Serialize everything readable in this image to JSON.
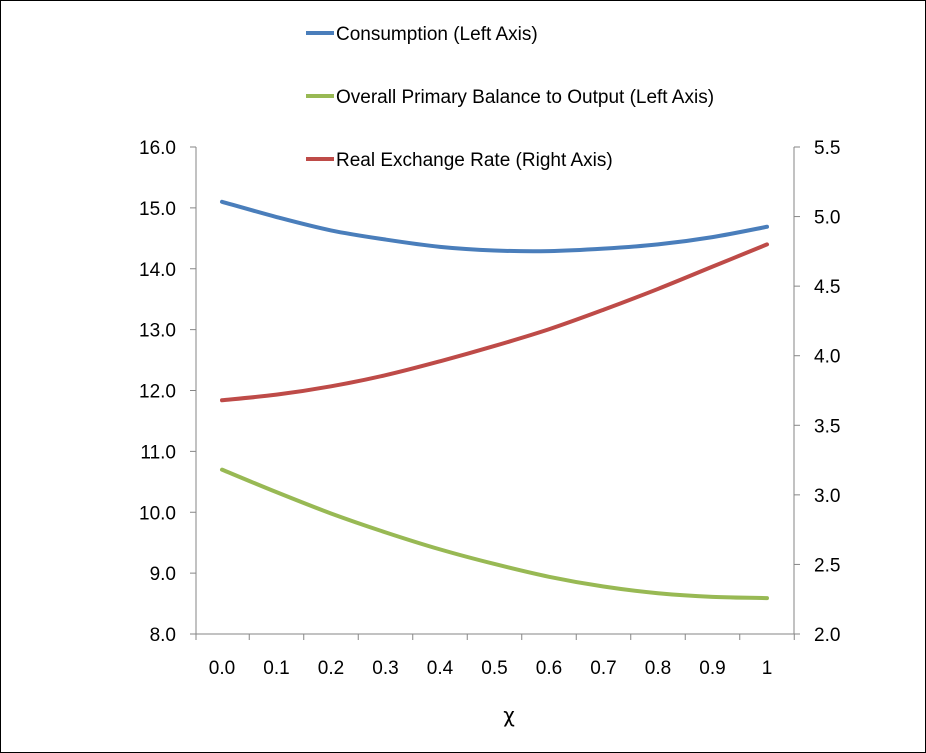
{
  "chart_data": {
    "type": "line",
    "x_label": "χ",
    "x": [
      0.0,
      0.1,
      0.2,
      0.3,
      0.4,
      0.5,
      0.6,
      0.7,
      0.8,
      0.9,
      1
    ],
    "x_tick_labels": [
      "0.0",
      "0.1",
      "0.2",
      "0.3",
      "0.4",
      "0.5",
      "0.6",
      "0.7",
      "0.8",
      "0.9",
      "1"
    ],
    "left_axis": {
      "min": 8.0,
      "max": 16.0,
      "step": 1.0,
      "tick_labels": [
        "8.0",
        "9.0",
        "10.0",
        "11.0",
        "12.0",
        "13.0",
        "14.0",
        "15.0",
        "16.0"
      ]
    },
    "right_axis": {
      "min": 2.0,
      "max": 5.5,
      "step": 0.5,
      "tick_labels": [
        "2.0",
        "2.5",
        "3.0",
        "3.5",
        "4.0",
        "4.5",
        "5.0",
        "5.5"
      ]
    },
    "legend_position": "top",
    "series": [
      {
        "name": "Consumption (Left Axis)",
        "axis": "left",
        "color": "#4a7ebb",
        "values": [
          15.1,
          14.85,
          14.63,
          14.48,
          14.36,
          14.3,
          14.29,
          14.33,
          14.4,
          14.52,
          14.69
        ]
      },
      {
        "name": "Overall Primary Balance to Output (Left Axis)",
        "axis": "left",
        "color": "#98b954",
        "values": [
          10.7,
          10.33,
          9.98,
          9.67,
          9.39,
          9.15,
          8.94,
          8.78,
          8.67,
          8.61,
          8.59
        ]
      },
      {
        "name": "Real Exchange Rate (Right Axis)",
        "axis": "right",
        "color": "#be4b48",
        "values": [
          3.68,
          3.72,
          3.78,
          3.86,
          3.96,
          4.07,
          4.19,
          4.33,
          4.48,
          4.64,
          4.8
        ]
      }
    ]
  }
}
